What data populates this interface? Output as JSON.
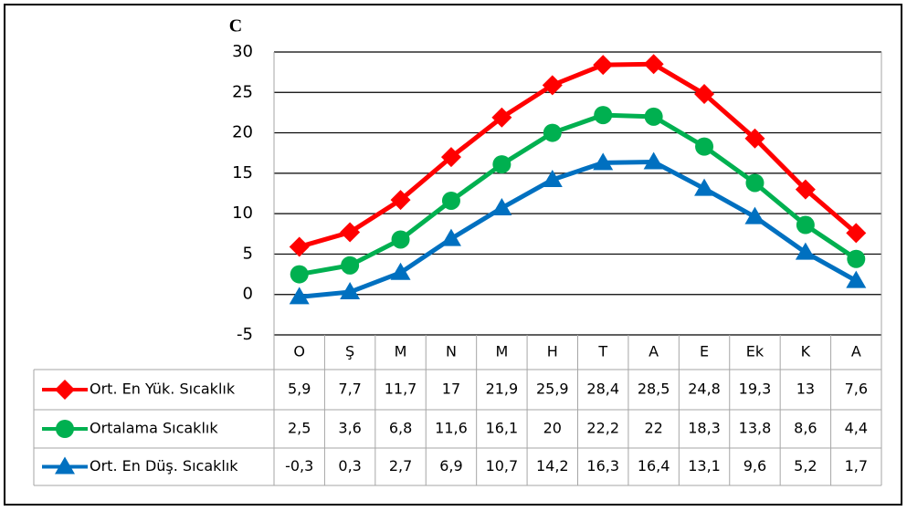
{
  "chart_data": {
    "type": "line",
    "y_label": "C",
    "categories": [
      "O",
      "Ş",
      "M",
      "N",
      "M",
      "H",
      "T",
      "A",
      "E",
      "Ek",
      "K",
      "A"
    ],
    "ylim": [
      -5,
      30
    ],
    "yticks": [
      -5,
      0,
      5,
      10,
      15,
      20,
      25,
      30
    ],
    "grid": true,
    "series": [
      {
        "name": "Ort. En Yük. Sıcaklık",
        "color": "#ff0000",
        "marker": "diamond",
        "values": [
          5.9,
          7.7,
          11.7,
          17,
          21.9,
          25.9,
          28.4,
          28.5,
          24.8,
          19.3,
          13,
          7.6
        ],
        "value_labels": [
          "5,9",
          "7,7",
          "11,7",
          "17",
          "21,9",
          "25,9",
          "28,4",
          "28,5",
          "24,8",
          "19,3",
          "13",
          "7,6"
        ]
      },
      {
        "name": "Ortalama Sıcaklık",
        "color": "#00b050",
        "marker": "circle",
        "values": [
          2.5,
          3.6,
          6.8,
          11.6,
          16.1,
          20,
          22.2,
          22,
          18.3,
          13.8,
          8.6,
          4.4
        ],
        "value_labels": [
          "2,5",
          "3,6",
          "6,8",
          "11,6",
          "16,1",
          "20",
          "22,2",
          "22",
          "18,3",
          "13,8",
          "8,6",
          "4,4"
        ]
      },
      {
        "name": "Ort. En Düş. Sıcaklık",
        "color": "#0070c0",
        "marker": "triangle",
        "values": [
          -0.3,
          0.3,
          2.7,
          6.9,
          10.7,
          14.2,
          16.3,
          16.4,
          13.1,
          9.6,
          5.2,
          1.7
        ],
        "value_labels": [
          "-0,3",
          "0,3",
          "2,7",
          "6,9",
          "10,7",
          "14,2",
          "16,3",
          "16,4",
          "13,1",
          "9,6",
          "5,2",
          "1,7"
        ]
      }
    ]
  }
}
